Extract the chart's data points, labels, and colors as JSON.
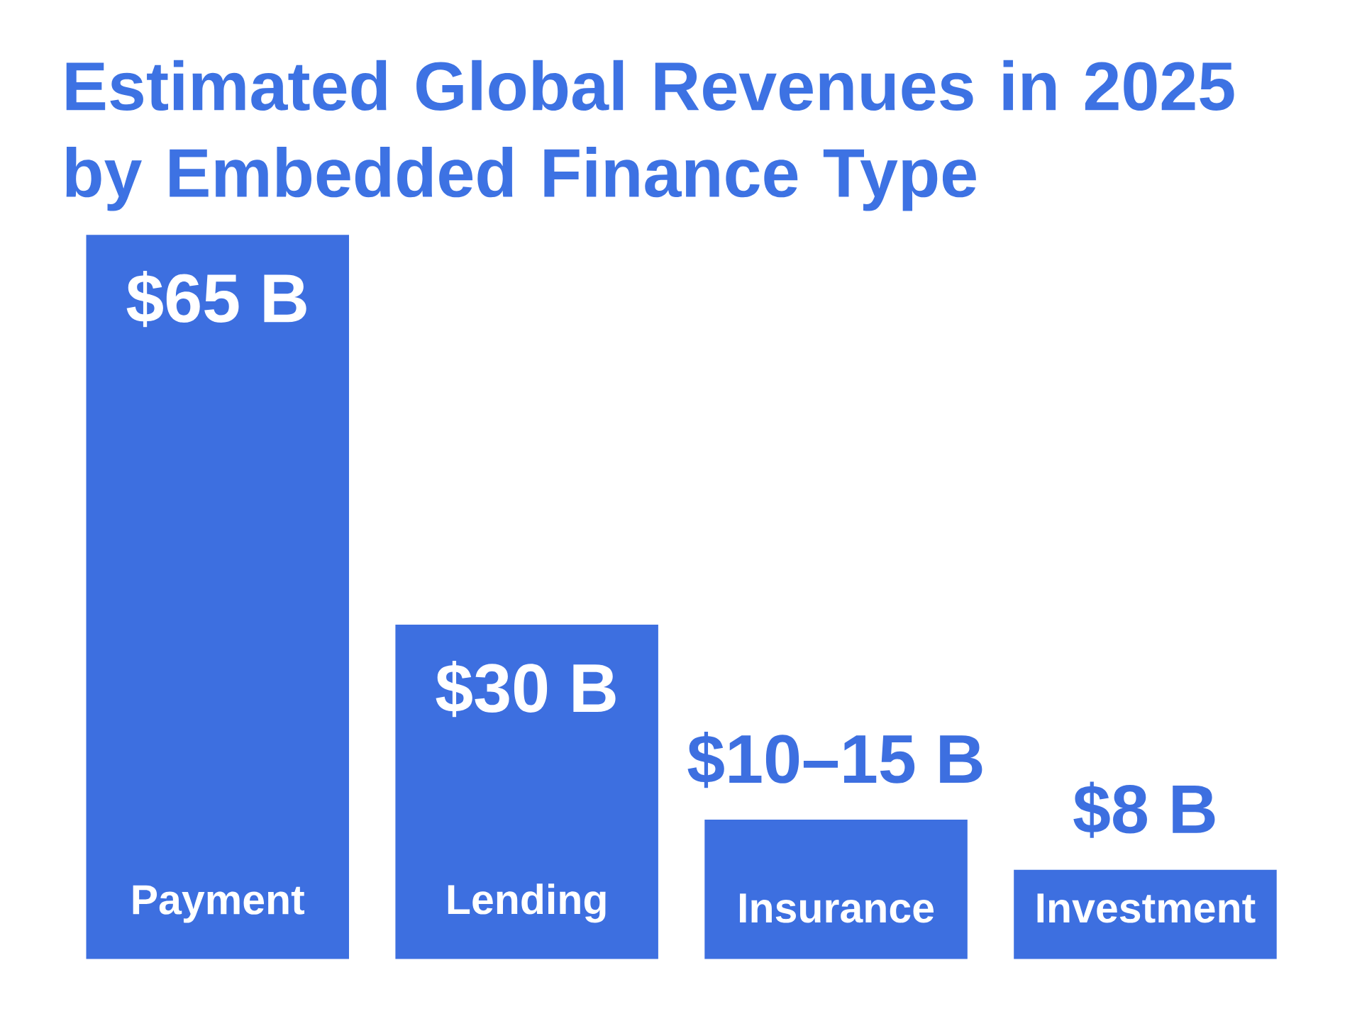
{
  "chart_data": {
    "type": "bar",
    "title": "Estimated Global Revenues in 2025 by Embedded Finance Type",
    "categories": [
      "Payment",
      "Lending",
      "Insurance",
      "Investment"
    ],
    "values": [
      65,
      30,
      12.5,
      8
    ],
    "value_labels": [
      "$65 B",
      "$30 B",
      "$10–15 B",
      "$8 B"
    ],
    "color": "#3d6fe0"
  }
}
